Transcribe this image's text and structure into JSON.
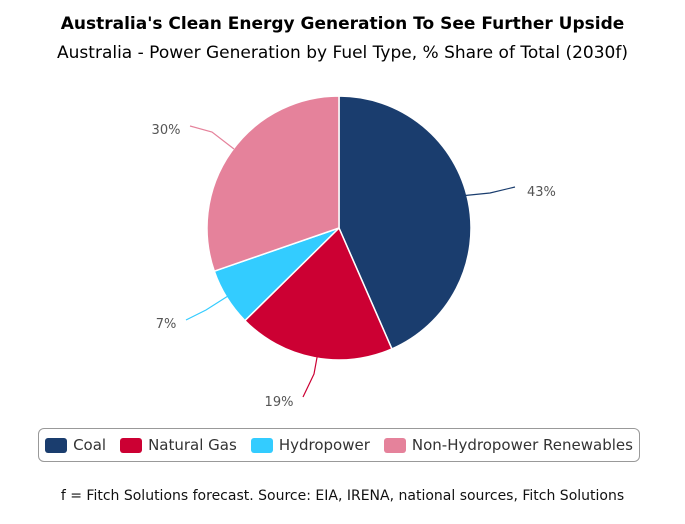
{
  "title": "Australia's Clean Energy Generation To See Further Upside",
  "subtitle": "Australia - Power Generation by Fuel Type, % Share of Total (2030f)",
  "source": "f = Fitch Solutions forecast. Source: EIA, IRENA, national sources, Fitch Solutions",
  "chart_data": {
    "type": "pie",
    "title": "Australia's Clean Energy Generation To See Further Upside",
    "subtitle": "Australia - Power Generation by Fuel Type, % Share of Total (2030f)",
    "legend_position": "bottom",
    "slices": [
      {
        "name": "Coal",
        "value": 43,
        "label": "43%",
        "color": "#1a3d6e"
      },
      {
        "name": "Natural Gas",
        "value": 19,
        "label": "19%",
        "color": "#cc0033"
      },
      {
        "name": "Hydropower",
        "value": 7,
        "label": "7%",
        "color": "#33ccff"
      },
      {
        "name": "Non-Hydropower Renewables",
        "value": 30,
        "label": "30%",
        "color": "#e5829b"
      }
    ]
  }
}
